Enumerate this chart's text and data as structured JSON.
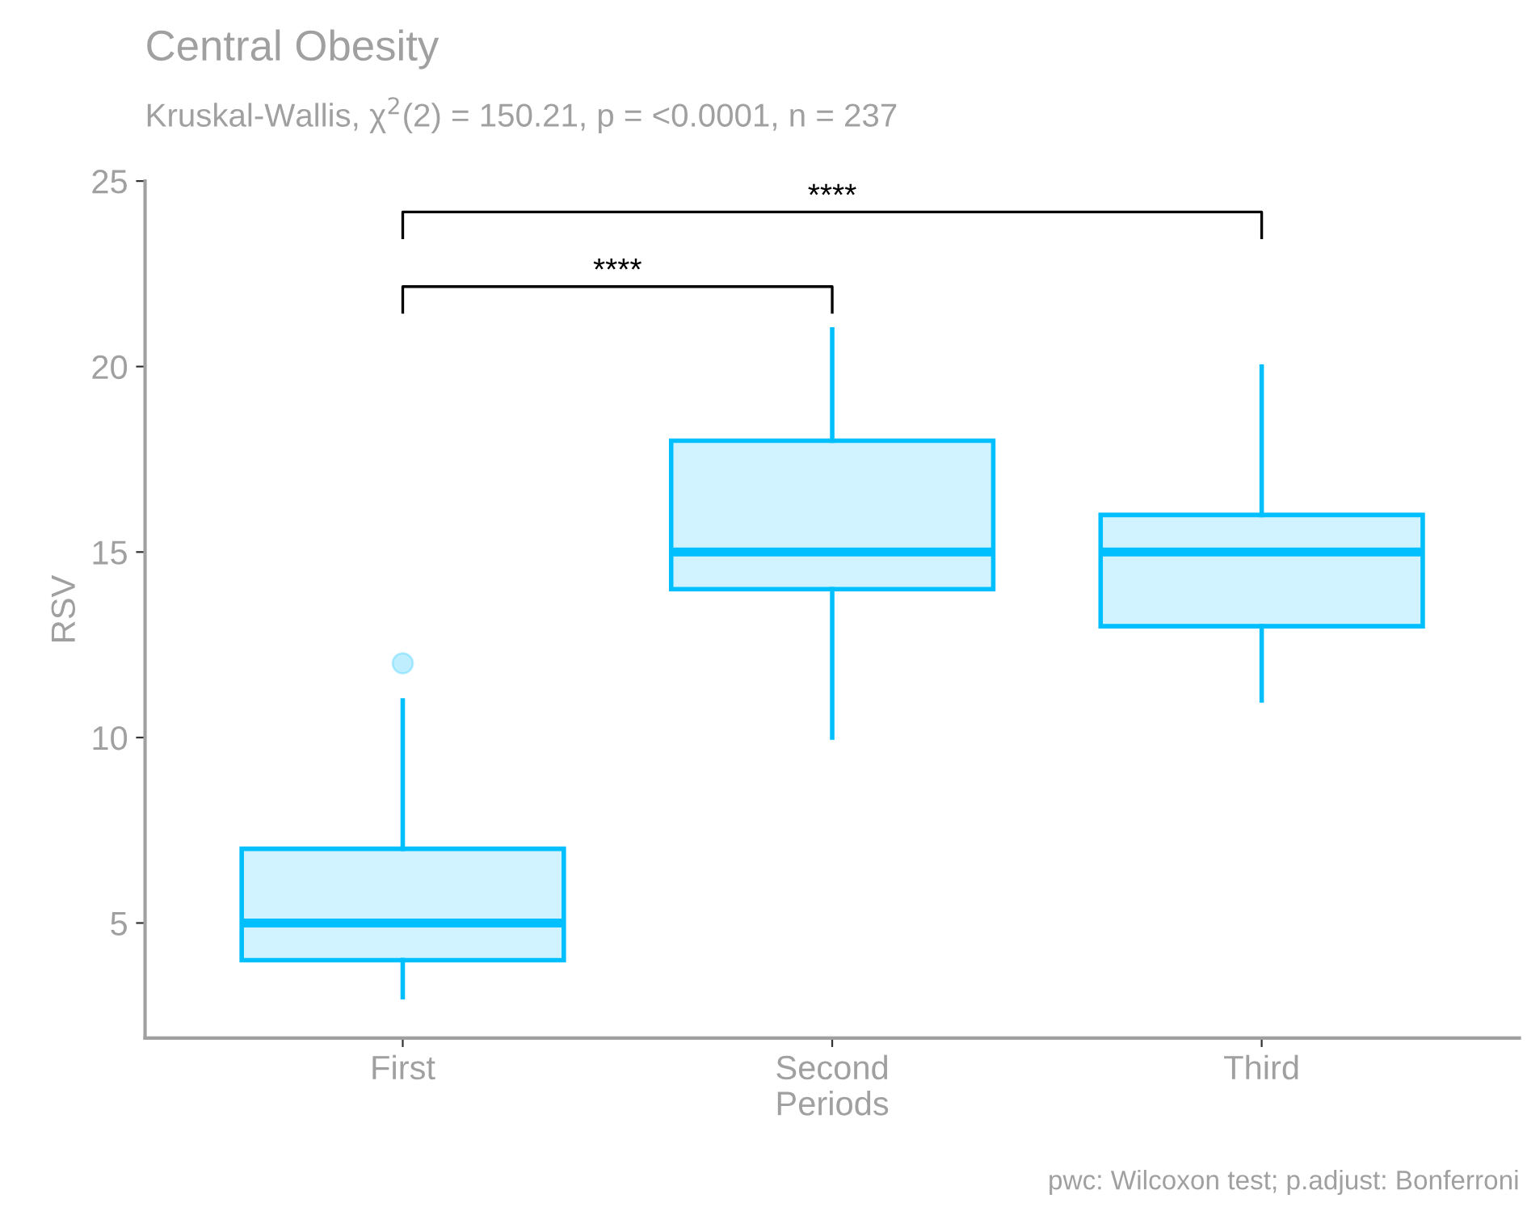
{
  "chart_data": {
    "type": "box",
    "title": "Central Obesity",
    "subtitle": "Kruskal-Wallis, χ$^{2}$(2) = 150.21, p = <0.0001, n = 237",
    "xlabel": "Periods",
    "ylabel": "RSV",
    "categories": [
      "First",
      "Second",
      "Third"
    ],
    "series": [
      {
        "color": "#00bfff",
        "boxes": [
          {
            "low": 3,
            "q1": 4,
            "median": 5,
            "q3": 7,
            "high": 11,
            "outliers": [
              12
            ]
          },
          {
            "low": 10,
            "q1": 14,
            "median": 15,
            "q3": 18,
            "high": 21
          },
          {
            "low": 11,
            "q1": 13,
            "median": 15,
            "q3": 16,
            "high": 20
          }
        ]
      }
    ],
    "ylim": [
      1.9,
      25
    ],
    "yticks": [
      5,
      10,
      15,
      20,
      25
    ],
    "grid": false,
    "annotations": [
      "****",
      "****",
      "pwc: Wilcoxon test; p.adjust: Bonferroni"
    ]
  }
}
